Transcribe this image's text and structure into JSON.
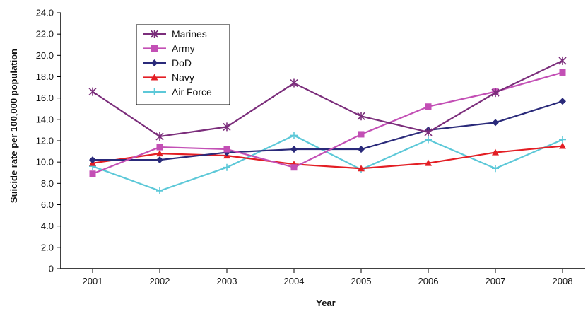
{
  "chart_data": {
    "type": "line",
    "xlabel": "Year",
    "ylabel": "Suicide rate per 100,000 population",
    "categories": [
      "2001",
      "2002",
      "2003",
      "2004",
      "2005",
      "2006",
      "2007",
      "2008"
    ],
    "ylim": [
      0,
      24
    ],
    "yticks": [
      "0",
      "2.0",
      "4.0",
      "6.0",
      "8.0",
      "10.0",
      "12.0",
      "14.0",
      "16.0",
      "18.0",
      "20.0",
      "22.0",
      "24.0"
    ],
    "grid": false,
    "legend_position": "top-left",
    "series": [
      {
        "name": "Marines",
        "color": "#7b2d7b",
        "marker": "x-star",
        "values": [
          16.6,
          12.4,
          13.3,
          17.4,
          14.3,
          12.8,
          16.5,
          19.5
        ]
      },
      {
        "name": "Army",
        "color": "#c34fb5",
        "marker": "square",
        "values": [
          8.9,
          11.4,
          11.2,
          9.5,
          12.6,
          15.2,
          16.6,
          18.4
        ]
      },
      {
        "name": "DoD",
        "color": "#2a2a7a",
        "marker": "diamond",
        "values": [
          10.2,
          10.2,
          10.9,
          11.2,
          11.2,
          13.0,
          13.7,
          15.7
        ]
      },
      {
        "name": "Navy",
        "color": "#e31e24",
        "marker": "triangle",
        "values": [
          9.9,
          10.8,
          10.6,
          9.8,
          9.4,
          9.9,
          10.9,
          11.5
        ]
      },
      {
        "name": "Air Force",
        "color": "#5cc8d8",
        "marker": "cross",
        "values": [
          9.6,
          7.3,
          9.5,
          12.5,
          9.3,
          12.1,
          9.4,
          12.1
        ]
      }
    ]
  }
}
